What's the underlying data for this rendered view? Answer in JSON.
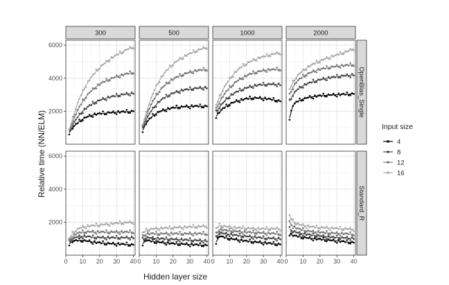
{
  "chart_data": {
    "type": "scatter",
    "xlabel": "Hidden layer size",
    "ylabel": "Relative time (NN/ELM)",
    "xlim": [
      0,
      41
    ],
    "ylim": [
      0,
      6300
    ],
    "xticks": [
      0,
      10,
      20,
      30,
      40
    ],
    "yticks": [
      2000,
      4000,
      6000
    ],
    "grid": true,
    "legend_position": "right",
    "legend_title": "Input size",
    "series_names": [
      "4",
      "8",
      "12",
      "16"
    ],
    "series_colors": [
      "#000000",
      "#444444",
      "#777777",
      "#a8a8a8"
    ],
    "columns": [
      "300",
      "500",
      "1000",
      "2000"
    ],
    "rows": [
      "OpenBlas_Single",
      "Standard_R"
    ],
    "x": [
      2,
      4,
      6,
      8,
      10,
      12,
      14,
      16,
      18,
      20,
      22,
      24,
      26,
      28,
      30,
      32,
      34,
      36,
      38,
      40
    ],
    "panels": [
      {
        "row": "OpenBlas_Single",
        "col": "300",
        "series": [
          {
            "name": "4",
            "values": [
              700,
              980,
              1200,
              1380,
              1520,
              1630,
              1710,
              1770,
              1820,
              1850,
              1870,
              1890,
              1910,
              1920,
              1940,
              1950,
              1960,
              1970,
              1980,
              2000
            ]
          },
          {
            "name": "8",
            "values": [
              750,
              1150,
              1500,
              1780,
              2000,
              2180,
              2330,
              2460,
              2570,
              2660,
              2730,
              2790,
              2850,
              2900,
              2940,
              2980,
              3010,
              3040,
              3060,
              3090
            ]
          },
          {
            "name": "12",
            "values": [
              800,
              1350,
              1850,
              2250,
              2600,
              2880,
              3120,
              3320,
              3490,
              3630,
              3750,
              3850,
              3940,
              4020,
              4090,
              4150,
              4210,
              4260,
              4310,
              4350
            ]
          },
          {
            "name": "16",
            "values": [
              850,
              1550,
              2200,
              2750,
              3200,
              3580,
              3900,
              4180,
              4420,
              4630,
              4820,
              4990,
              5140,
              5280,
              5400,
              5510,
              5620,
              5720,
              5810,
              5900
            ]
          }
        ]
      },
      {
        "row": "OpenBlas_Single",
        "col": "500",
        "series": [
          {
            "name": "4",
            "values": [
              850,
              1250,
              1520,
              1720,
              1860,
              1970,
              2050,
              2110,
              2160,
              2200,
              2230,
              2250,
              2270,
              2280,
              2290,
              2300,
              2300,
              2300,
              2300,
              2300
            ]
          },
          {
            "name": "8",
            "values": [
              950,
              1450,
              1850,
              2150,
              2400,
              2600,
              2760,
              2890,
              3000,
              3090,
              3160,
              3220,
              3270,
              3310,
              3340,
              3370,
              3390,
              3400,
              3410,
              3420
            ]
          },
          {
            "name": "12",
            "values": [
              1050,
              1650,
              2180,
              2600,
              2950,
              3230,
              3460,
              3650,
              3810,
              3940,
              4050,
              4150,
              4230,
              4300,
              4360,
              4410,
              4450,
              4480,
              4510,
              4530
            ]
          },
          {
            "name": "16",
            "values": [
              1150,
              1850,
              2500,
              3050,
              3500,
              3870,
              4180,
              4440,
              4660,
              4850,
              5010,
              5150,
              5280,
              5390,
              5490,
              5580,
              5660,
              5740,
              5810,
              5880
            ]
          }
        ]
      },
      {
        "row": "OpenBlas_Single",
        "col": "1000",
        "series": [
          {
            "name": "4",
            "values": [
              1700,
              1950,
              2150,
              2300,
              2420,
              2520,
              2600,
              2660,
              2710,
              2750,
              2780,
              2800,
              2800,
              2790,
              2770,
              2750,
              2720,
              2690,
              2650,
              2600
            ]
          },
          {
            "name": "8",
            "values": [
              1950,
              2250,
              2500,
              2720,
              2900,
              3040,
              3160,
              3260,
              3340,
              3410,
              3470,
              3520,
              3560,
              3590,
              3610,
              3620,
              3630,
              3630,
              3620,
              3610
            ]
          },
          {
            "name": "12",
            "values": [
              2150,
              2550,
              2900,
              3180,
              3420,
              3620,
              3790,
              3930,
              4050,
              4150,
              4240,
              4310,
              4370,
              4420,
              4460,
              4490,
              4510,
              4520,
              4530,
              4540
            ]
          },
          {
            "name": "16",
            "values": [
              2350,
              2850,
              3300,
              3650,
              3950,
              4200,
              4420,
              4600,
              4750,
              4880,
              4990,
              5090,
              5170,
              5240,
              5300,
              5360,
              5410,
              5460,
              5500,
              5540
            ]
          }
        ]
      },
      {
        "row": "OpenBlas_Single",
        "col": "2000",
        "series": [
          {
            "name": "4",
            "values": [
              1600,
              2350,
              2550,
              2660,
              2740,
              2800,
              2850,
              2880,
              2910,
              2930,
              2950,
              2970,
              2980,
              2990,
              3000,
              3010,
              3020,
              3030,
              3040,
              3050
            ]
          },
          {
            "name": "8",
            "values": [
              2600,
              3000,
              3250,
              3420,
              3540,
              3640,
              3720,
              3790,
              3850,
              3900,
              3950,
              3990,
              4030,
              4060,
              4090,
              4120,
              4140,
              4160,
              4180,
              4200
            ]
          },
          {
            "name": "12",
            "values": [
              3000,
              3450,
              3750,
              3950,
              4100,
              4220,
              4320,
              4400,
              4470,
              4530,
              4580,
              4620,
              4660,
              4690,
              4720,
              4740,
              4760,
              4780,
              4800,
              4820
            ]
          },
          {
            "name": "16",
            "values": [
              3300,
              3750,
              4050,
              4280,
              4460,
              4610,
              4740,
              4850,
              4950,
              5040,
              5120,
              5200,
              5270,
              5340,
              5410,
              5480,
              5550,
              5620,
              5700,
              5800
            ]
          }
        ]
      },
      {
        "row": "Standard_R",
        "col": "300",
        "series": [
          {
            "name": "4",
            "values": [
              700,
              820,
              880,
              900,
              890,
              860,
              830,
              800,
              770,
              750,
              730,
              710,
              700,
              690,
              680,
              670,
              660,
              650,
              640,
              630
            ]
          },
          {
            "name": "8",
            "values": [
              800,
              980,
              1080,
              1130,
              1140,
              1130,
              1110,
              1090,
              1080,
              1070,
              1060,
              1060,
              1060,
              1060,
              1060,
              1060,
              1060,
              1060,
              1060,
              1060
            ]
          },
          {
            "name": "12",
            "values": [
              900,
              1130,
              1280,
              1360,
              1400,
              1410,
              1410,
              1410,
              1400,
              1400,
              1400,
              1400,
              1400,
              1400,
              1400,
              1400,
              1400,
              1400,
              1400,
              1400
            ]
          },
          {
            "name": "16",
            "values": [
              1000,
              1300,
              1500,
              1630,
              1700,
              1740,
              1770,
              1790,
              1810,
              1830,
              1850,
              1870,
              1890,
              1910,
              1930,
              1950,
              1960,
              1970,
              1980,
              2000
            ]
          }
        ]
      },
      {
        "row": "Standard_R",
        "col": "500",
        "series": [
          {
            "name": "4",
            "values": [
              700,
              900,
              860,
              830,
              800,
              780,
              760,
              740,
              720,
              700,
              690,
              680,
              670,
              660,
              650,
              640,
              630,
              620,
              610,
              600
            ]
          },
          {
            "name": "8",
            "values": [
              950,
              1050,
              1050,
              1030,
              1010,
              1000,
              990,
              980,
              970,
              960,
              950,
              940,
              930,
              920,
              910,
              900,
              890,
              880,
              870,
              860
            ]
          },
          {
            "name": "12",
            "values": [
              1150,
              1280,
              1300,
              1300,
              1300,
              1300,
              1300,
              1300,
              1300,
              1300,
              1300,
              1300,
              1300,
              1300,
              1300,
              1300,
              1300,
              1300,
              1300,
              1300
            ]
          },
          {
            "name": "16",
            "values": [
              1350,
              1500,
              1560,
              1590,
              1610,
              1620,
              1630,
              1640,
              1650,
              1660,
              1670,
              1680,
              1690,
              1700,
              1710,
              1720,
              1730,
              1740,
              1750,
              1760
            ]
          }
        ]
      },
      {
        "row": "Standard_R",
        "col": "1000",
        "series": [
          {
            "name": "4",
            "values": [
              800,
              1150,
              1100,
              1050,
              1000,
              970,
              940,
              910,
              880,
              850,
              830,
              810,
              790,
              770,
              750,
              730,
              710,
              690,
              670,
              650
            ]
          },
          {
            "name": "8",
            "values": [
              1050,
              1350,
              1320,
              1290,
              1260,
              1230,
              1200,
              1180,
              1160,
              1140,
              1120,
              1100,
              1080,
              1060,
              1040,
              1030,
              1020,
              1010,
              1000,
              990
            ]
          },
          {
            "name": "12",
            "values": [
              1300,
              1550,
              1530,
              1500,
              1480,
              1460,
              1440,
              1420,
              1400,
              1390,
              1380,
              1370,
              1360,
              1350,
              1340,
              1330,
              1320,
              1310,
              1300,
              1290
            ]
          },
          {
            "name": "16",
            "values": [
              1600,
              1800,
              1760,
              1730,
              1700,
              1680,
              1660,
              1650,
              1640,
              1630,
              1620,
              1610,
              1600,
              1600,
              1600,
              1600,
              1600,
              1600,
              1600,
              1600
            ]
          }
        ]
      },
      {
        "row": "Standard_R",
        "col": "2000",
        "series": [
          {
            "name": "4",
            "values": [
              1300,
              1200,
              1150,
              1110,
              1080,
              1050,
              1020,
              1000,
              980,
              960,
              940,
              920,
              900,
              880,
              860,
              840,
              820,
              800,
              780,
              760
            ]
          },
          {
            "name": "8",
            "values": [
              1600,
              1450,
              1380,
              1330,
              1290,
              1260,
              1230,
              1200,
              1180,
              1160,
              1140,
              1120,
              1100,
              1080,
              1070,
              1060,
              1050,
              1040,
              1030,
              1020
            ]
          },
          {
            "name": "12",
            "values": [
              2000,
              1750,
              1640,
              1570,
              1520,
              1480,
              1450,
              1420,
              1400,
              1380,
              1360,
              1350,
              1340,
              1330,
              1320,
              1310,
              1300,
              1290,
              1280,
              1270
            ]
          },
          {
            "name": "16",
            "values": [
              2400,
              2050,
              1930,
              1850,
              1800,
              1760,
              1730,
              1710,
              1690,
              1670,
              1660,
              1650,
              1640,
              1630,
              1620,
              1610,
              1600,
              1590,
              1580,
              1570
            ]
          }
        ]
      }
    ]
  }
}
